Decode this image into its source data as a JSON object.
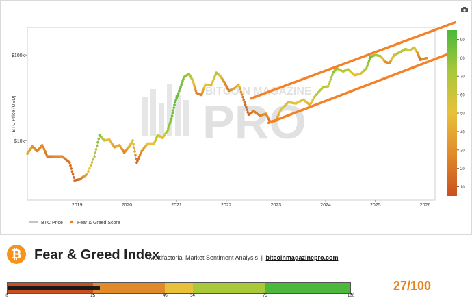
{
  "chart": {
    "watermark_brand": "BITCOIN MAGAZINE",
    "watermark_pro": "PRO"
  },
  "chart_data": {
    "type": "scatter",
    "ylabel": "BTC Price (USD)",
    "yscale": "log",
    "y_ticks": [
      {
        "label": "$10k",
        "value": 10000
      },
      {
        "label": "$100k",
        "value": 100000
      }
    ],
    "x_ticks": [
      {
        "label": "2019",
        "value": 2019
      },
      {
        "label": "2020",
        "value": 2020
      },
      {
        "label": "2021",
        "value": 2021
      },
      {
        "label": "2022",
        "value": 2022
      },
      {
        "label": "2023",
        "value": 2023
      },
      {
        "label": "2024",
        "value": 2024
      },
      {
        "label": "2025",
        "value": 2025
      },
      {
        "label": "2026",
        "value": 2026
      }
    ],
    "xlim": [
      2018.0,
      2026.2
    ],
    "ylim": [
      2000,
      210000
    ],
    "colorbar": {
      "min": 5,
      "max": 95,
      "ticks": [
        10,
        20,
        30,
        40,
        50,
        60,
        70,
        80,
        90
      ]
    },
    "legend": [
      "BTC Price",
      "Fear & Greed Score"
    ],
    "legend_position": "bottom-left",
    "series": [
      {
        "name": "BTC Price",
        "points": [
          {
            "x": 2018.0,
            "y": 7000,
            "s": 40
          },
          {
            "x": 2018.1,
            "y": 8500,
            "s": 30
          },
          {
            "x": 2018.2,
            "y": 7500,
            "s": 22
          },
          {
            "x": 2018.3,
            "y": 8800,
            "s": 28
          },
          {
            "x": 2018.4,
            "y": 6500,
            "s": 18
          },
          {
            "x": 2018.55,
            "y": 6500,
            "s": 25
          },
          {
            "x": 2018.7,
            "y": 6500,
            "s": 28
          },
          {
            "x": 2018.85,
            "y": 5500,
            "s": 12
          },
          {
            "x": 2018.95,
            "y": 3400,
            "s": 10
          },
          {
            "x": 2019.05,
            "y": 3500,
            "s": 12
          },
          {
            "x": 2019.2,
            "y": 4000,
            "s": 40
          },
          {
            "x": 2019.35,
            "y": 6500,
            "s": 70
          },
          {
            "x": 2019.45,
            "y": 11500,
            "s": 88
          },
          {
            "x": 2019.55,
            "y": 10000,
            "s": 60
          },
          {
            "x": 2019.65,
            "y": 10200,
            "s": 48
          },
          {
            "x": 2019.75,
            "y": 8300,
            "s": 35
          },
          {
            "x": 2019.85,
            "y": 8800,
            "s": 42
          },
          {
            "x": 2019.95,
            "y": 7200,
            "s": 22
          },
          {
            "x": 2020.05,
            "y": 8500,
            "s": 40
          },
          {
            "x": 2020.12,
            "y": 10000,
            "s": 56
          },
          {
            "x": 2020.2,
            "y": 5500,
            "s": 10
          },
          {
            "x": 2020.3,
            "y": 7500,
            "s": 28
          },
          {
            "x": 2020.42,
            "y": 9200,
            "s": 48
          },
          {
            "x": 2020.55,
            "y": 9200,
            "s": 52
          },
          {
            "x": 2020.62,
            "y": 11500,
            "s": 70
          },
          {
            "x": 2020.72,
            "y": 10700,
            "s": 45
          },
          {
            "x": 2020.82,
            "y": 13000,
            "s": 75
          },
          {
            "x": 2020.9,
            "y": 18000,
            "s": 90
          },
          {
            "x": 2020.97,
            "y": 28000,
            "s": 93
          },
          {
            "x": 2021.07,
            "y": 40000,
            "s": 90
          },
          {
            "x": 2021.15,
            "y": 55000,
            "s": 85
          },
          {
            "x": 2021.25,
            "y": 60000,
            "s": 78
          },
          {
            "x": 2021.33,
            "y": 50000,
            "s": 55
          },
          {
            "x": 2021.4,
            "y": 36000,
            "s": 20
          },
          {
            "x": 2021.5,
            "y": 34000,
            "s": 22
          },
          {
            "x": 2021.58,
            "y": 45000,
            "s": 55
          },
          {
            "x": 2021.7,
            "y": 44000,
            "s": 45
          },
          {
            "x": 2021.8,
            "y": 62000,
            "s": 75
          },
          {
            "x": 2021.88,
            "y": 57000,
            "s": 50
          },
          {
            "x": 2021.97,
            "y": 47000,
            "s": 25
          },
          {
            "x": 2022.05,
            "y": 38000,
            "s": 20
          },
          {
            "x": 2022.15,
            "y": 40000,
            "s": 35
          },
          {
            "x": 2022.25,
            "y": 45000,
            "s": 45
          },
          {
            "x": 2022.35,
            "y": 30000,
            "s": 15
          },
          {
            "x": 2022.45,
            "y": 20000,
            "s": 8
          },
          {
            "x": 2022.55,
            "y": 22000,
            "s": 20
          },
          {
            "x": 2022.68,
            "y": 19500,
            "s": 22
          },
          {
            "x": 2022.8,
            "y": 20500,
            "s": 30
          },
          {
            "x": 2022.88,
            "y": 16500,
            "s": 12
          },
          {
            "x": 2023.0,
            "y": 17000,
            "s": 25
          },
          {
            "x": 2023.1,
            "y": 23000,
            "s": 55
          },
          {
            "x": 2023.25,
            "y": 28000,
            "s": 60
          },
          {
            "x": 2023.4,
            "y": 27000,
            "s": 50
          },
          {
            "x": 2023.55,
            "y": 30000,
            "s": 55
          },
          {
            "x": 2023.68,
            "y": 26000,
            "s": 42
          },
          {
            "x": 2023.8,
            "y": 34000,
            "s": 65
          },
          {
            "x": 2023.95,
            "y": 42000,
            "s": 72
          },
          {
            "x": 2024.05,
            "y": 43000,
            "s": 60
          },
          {
            "x": 2024.15,
            "y": 62000,
            "s": 82
          },
          {
            "x": 2024.22,
            "y": 70000,
            "s": 80
          },
          {
            "x": 2024.35,
            "y": 64000,
            "s": 65
          },
          {
            "x": 2024.45,
            "y": 68000,
            "s": 70
          },
          {
            "x": 2024.58,
            "y": 58000,
            "s": 45
          },
          {
            "x": 2024.7,
            "y": 60000,
            "s": 50
          },
          {
            "x": 2024.82,
            "y": 70000,
            "s": 72
          },
          {
            "x": 2024.9,
            "y": 95000,
            "s": 90
          },
          {
            "x": 2025.0,
            "y": 100000,
            "s": 78
          },
          {
            "x": 2025.1,
            "y": 97000,
            "s": 70
          },
          {
            "x": 2025.2,
            "y": 83000,
            "s": 30
          },
          {
            "x": 2025.28,
            "y": 80000,
            "s": 25
          },
          {
            "x": 2025.38,
            "y": 100000,
            "s": 65
          },
          {
            "x": 2025.5,
            "y": 108000,
            "s": 70
          },
          {
            "x": 2025.6,
            "y": 117000,
            "s": 72
          },
          {
            "x": 2025.7,
            "y": 113000,
            "s": 50
          },
          {
            "x": 2025.78,
            "y": 122000,
            "s": 65
          },
          {
            "x": 2025.85,
            "y": 105000,
            "s": 35
          },
          {
            "x": 2025.9,
            "y": 88000,
            "s": 15
          },
          {
            "x": 2025.97,
            "y": 90000,
            "s": 25
          },
          {
            "x": 2026.03,
            "y": 92000,
            "s": 27
          }
        ]
      }
    ],
    "trend_channel": {
      "color": "#f58025",
      "upper": [
        {
          "x": 2022.5,
          "y": 31000
        },
        {
          "x": 2026.6,
          "y": 240000
        }
      ],
      "lower": [
        {
          "x": 2022.85,
          "y": 16000
        },
        {
          "x": 2026.6,
          "y": 110000
        }
      ]
    }
  },
  "footer": {
    "logo_glyph": "₿",
    "title": "Fear & Greed Index",
    "subtitle": "Multifactorial Market Sentiment Analysis",
    "separator": "|",
    "site": "bitcoinmagazinepro.com",
    "score_text": "27/100",
    "score_value": 27,
    "score_color": "#e8821e",
    "gauge_segments": [
      {
        "from": 0,
        "to": 25,
        "color": "#c9501e"
      },
      {
        "from": 25,
        "to": 46,
        "color": "#e08a2a"
      },
      {
        "from": 46,
        "to": 54,
        "color": "#e8c13a"
      },
      {
        "from": 54,
        "to": 75,
        "color": "#a9c83a"
      },
      {
        "from": 75,
        "to": 100,
        "color": "#4cb83c"
      }
    ],
    "gauge_ticks": [
      "0",
      "25",
      "46",
      "54",
      "75",
      "100"
    ]
  }
}
